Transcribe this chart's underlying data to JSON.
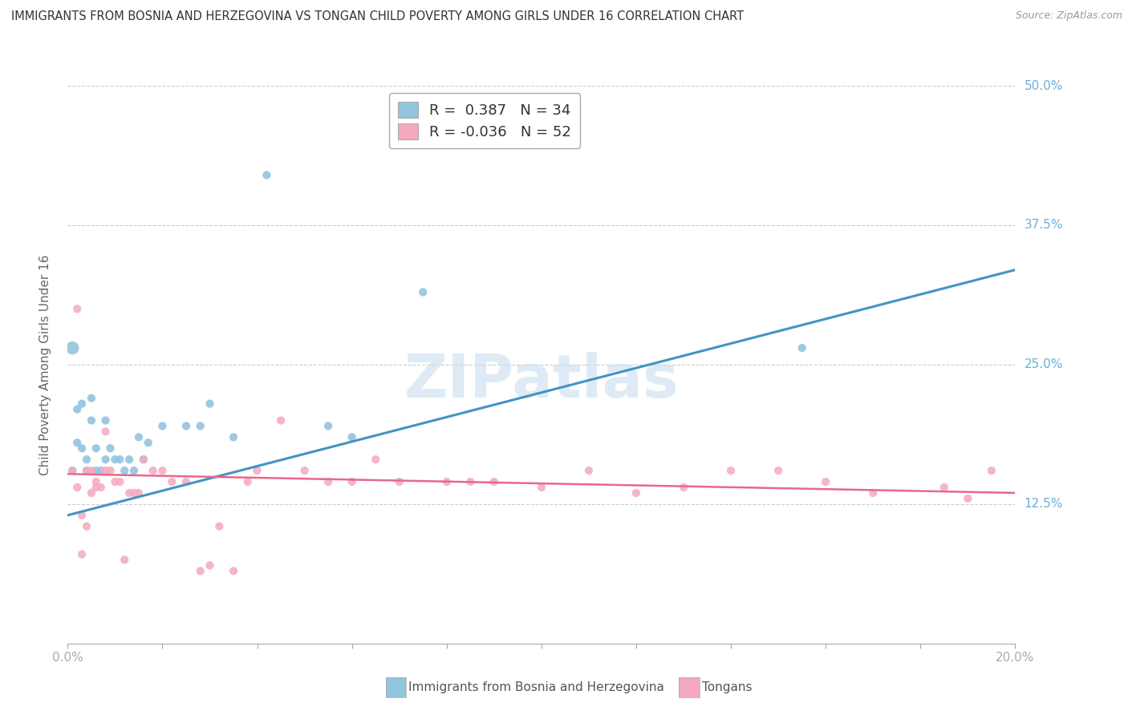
{
  "title": "IMMIGRANTS FROM BOSNIA AND HERZEGOVINA VS TONGAN CHILD POVERTY AMONG GIRLS UNDER 16 CORRELATION CHART",
  "source": "Source: ZipAtlas.com",
  "xlabel_bottom": [
    "Immigrants from Bosnia and Herzegovina",
    "Tongans"
  ],
  "ylabel": "Child Poverty Among Girls Under 16",
  "x_min": 0.0,
  "x_max": 0.2,
  "y_min": 0.0,
  "y_max": 0.5,
  "y_ticks": [
    0.125,
    0.25,
    0.375,
    0.5
  ],
  "y_tick_labels": [
    "12.5%",
    "25.0%",
    "37.5%",
    "50.0%"
  ],
  "blue_color": "#92c5de",
  "pink_color": "#f4a9be",
  "blue_line_color": "#4393c3",
  "pink_line_color": "#e8688a",
  "watermark": "ZIPatlas",
  "legend_R_blue": "R =  0.387",
  "legend_N_blue": "N = 34",
  "legend_R_pink": "R = -0.036",
  "legend_N_pink": "N = 52",
  "blue_scatter_x": [
    0.001,
    0.002,
    0.002,
    0.003,
    0.003,
    0.004,
    0.004,
    0.005,
    0.005,
    0.006,
    0.006,
    0.007,
    0.008,
    0.008,
    0.009,
    0.01,
    0.011,
    0.012,
    0.013,
    0.014,
    0.015,
    0.016,
    0.017,
    0.02,
    0.025,
    0.028,
    0.03,
    0.035,
    0.042,
    0.055,
    0.06,
    0.075,
    0.155,
    0.001
  ],
  "blue_scatter_y": [
    0.155,
    0.18,
    0.21,
    0.215,
    0.175,
    0.155,
    0.165,
    0.2,
    0.22,
    0.155,
    0.175,
    0.155,
    0.165,
    0.2,
    0.175,
    0.165,
    0.165,
    0.155,
    0.165,
    0.155,
    0.185,
    0.165,
    0.18,
    0.195,
    0.195,
    0.195,
    0.215,
    0.185,
    0.42,
    0.195,
    0.185,
    0.315,
    0.265,
    0.265
  ],
  "pink_scatter_x": [
    0.001,
    0.002,
    0.002,
    0.003,
    0.003,
    0.004,
    0.004,
    0.005,
    0.005,
    0.006,
    0.006,
    0.007,
    0.008,
    0.008,
    0.009,
    0.01,
    0.011,
    0.012,
    0.013,
    0.014,
    0.015,
    0.016,
    0.018,
    0.02,
    0.022,
    0.025,
    0.028,
    0.03,
    0.032,
    0.035,
    0.038,
    0.04,
    0.045,
    0.05,
    0.055,
    0.06,
    0.065,
    0.07,
    0.08,
    0.085,
    0.09,
    0.1,
    0.11,
    0.12,
    0.13,
    0.14,
    0.15,
    0.16,
    0.17,
    0.185,
    0.19,
    0.195
  ],
  "pink_scatter_y": [
    0.155,
    0.3,
    0.14,
    0.08,
    0.115,
    0.105,
    0.155,
    0.135,
    0.155,
    0.14,
    0.145,
    0.14,
    0.155,
    0.19,
    0.155,
    0.145,
    0.145,
    0.075,
    0.135,
    0.135,
    0.135,
    0.165,
    0.155,
    0.155,
    0.145,
    0.145,
    0.065,
    0.07,
    0.105,
    0.065,
    0.145,
    0.155,
    0.2,
    0.155,
    0.145,
    0.145,
    0.165,
    0.145,
    0.145,
    0.145,
    0.145,
    0.14,
    0.155,
    0.135,
    0.14,
    0.155,
    0.155,
    0.145,
    0.135,
    0.14,
    0.13,
    0.155
  ],
  "blue_trend_x": [
    0.0,
    0.2
  ],
  "blue_trend_y": [
    0.115,
    0.335
  ],
  "pink_trend_x": [
    0.0,
    0.2
  ],
  "pink_trend_y": [
    0.152,
    0.135
  ]
}
